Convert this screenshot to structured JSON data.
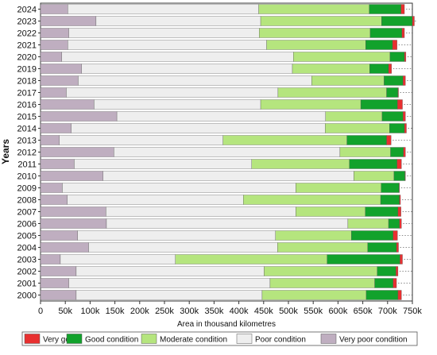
{
  "chart_data": {
    "type": "bar",
    "orientation": "horizontal",
    "stacked": true,
    "title": "",
    "xlabel": "Area in thousand kilometres",
    "ylabel": "Years",
    "xlim": [
      0,
      750
    ],
    "x_ticks": [
      0,
      50,
      100,
      150,
      200,
      250,
      300,
      350,
      400,
      450,
      500,
      550,
      600,
      650,
      700,
      750
    ],
    "x_tick_labels": [
      "0",
      "50k",
      "100k",
      "150k",
      "200k",
      "250k",
      "300k",
      "350k",
      "400k",
      "450k",
      "500k",
      "550k",
      "600k",
      "650k",
      "700k",
      "750k"
    ],
    "grid": false,
    "legend_position": "bottom",
    "categories": [
      "2024",
      "2023",
      "2022",
      "2021",
      "2020",
      "2019",
      "2018",
      "2017",
      "2016",
      "2015",
      "2014",
      "2013",
      "2012",
      "2011",
      "2010",
      "2009",
      "2008",
      "2007",
      "2006",
      "2005",
      "2004",
      "2003",
      "2002",
      "2001",
      "2000"
    ],
    "series": [
      {
        "name": "Very poor condition",
        "color": "#bfaec0",
        "values": [
          55,
          112,
          57,
          55,
          43,
          83,
          76,
          52,
          108,
          154,
          62,
          38,
          148,
          68,
          126,
          44,
          54,
          132,
          133,
          75,
          97,
          40,
          72,
          57,
          72
        ]
      },
      {
        "name": "Poor condition",
        "color": "#eeeeee",
        "values": [
          385,
          332,
          384,
          401,
          467,
          425,
          471,
          427,
          336,
          421,
          512,
          330,
          456,
          358,
          506,
          471,
          355,
          383,
          487,
          399,
          381,
          232,
          379,
          406,
          375
        ]
      },
      {
        "name": "Moderate condition",
        "color": "#b5e57e",
        "values": [
          223,
          244,
          224,
          200,
          195,
          156,
          146,
          219,
          202,
          114,
          130,
          250,
          102,
          197,
          81,
          172,
          277,
          140,
          82,
          153,
          182,
          306,
          228,
          211,
          210
        ]
      },
      {
        "name": "Good condition",
        "color": "#12a22c",
        "values": [
          64,
          62,
          64,
          54,
          29,
          38,
          38,
          23,
          74,
          42,
          30,
          80,
          26,
          96,
          22,
          36,
          38,
          66,
          22,
          84,
          58,
          147,
          38,
          37,
          64
        ]
      },
      {
        "name": "Very good",
        "color": "#e83030",
        "values": [
          7,
          4,
          5,
          9,
          3,
          6,
          5,
          1,
          10,
          5,
          4,
          9,
          4,
          9,
          1,
          1,
          2,
          6,
          4,
          9,
          4,
          5,
          4,
          7,
          7
        ]
      }
    ],
    "legend_order": [
      "Very good",
      "Good condition",
      "Moderate condition",
      "Poor condition",
      "Very poor condition"
    ]
  }
}
